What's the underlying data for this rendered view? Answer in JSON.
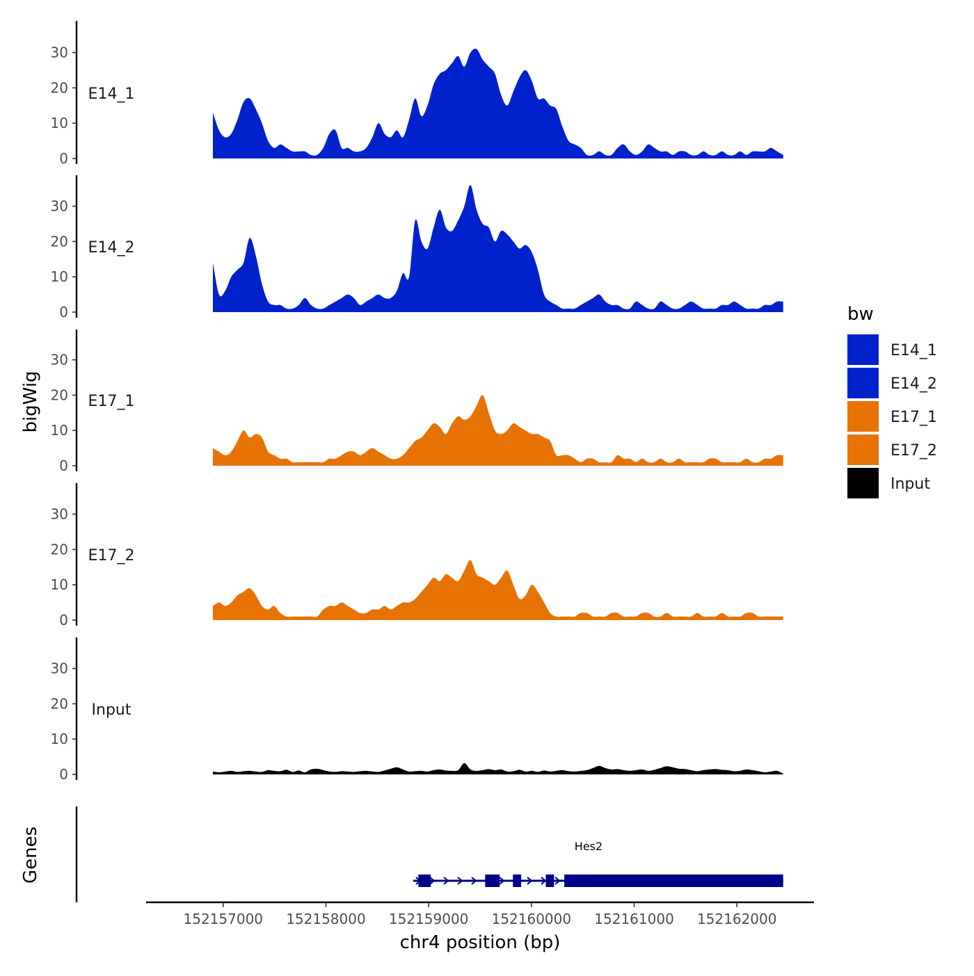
{
  "chart_data": {
    "type": "area",
    "ylabel": "bigWig",
    "xlabel": "chr4 position (bp)",
    "genes_label": "Genes",
    "x_range": [
      152156250,
      152162750
    ],
    "signal_range": [
      152156900,
      152162450
    ],
    "ylim": [
      0,
      38
    ],
    "y_ticks": [
      0,
      10,
      20,
      30
    ],
    "x_ticks": [
      152157000,
      152158000,
      152159000,
      152160000,
      152161000,
      152162000
    ],
    "x_tick_labels": [
      "152157000",
      "152158000",
      "152159000",
      "152160000",
      "152161000",
      "152162000"
    ],
    "legend": {
      "title": "bw",
      "entries": [
        {
          "label": "E14_1",
          "color": "#0022CC"
        },
        {
          "label": "E14_2",
          "color": "#0022CC"
        },
        {
          "label": "E17_1",
          "color": "#E87305"
        },
        {
          "label": "E17_2",
          "color": "#E87305"
        },
        {
          "label": "Input",
          "color": "#000000"
        }
      ]
    },
    "series": [
      {
        "name": "E14_1",
        "color": "#0022CC",
        "values": [
          13,
          8,
          6,
          7,
          11,
          16,
          17,
          14,
          10,
          5,
          3,
          4,
          3,
          2,
          2,
          2,
          1,
          1,
          3,
          7,
          8,
          3,
          3,
          2,
          2,
          3,
          6,
          10,
          7,
          6,
          8,
          6,
          11,
          17,
          12,
          15,
          21,
          24,
          25,
          27,
          29,
          26,
          30,
          31,
          28,
          26,
          24,
          18,
          15,
          19,
          23,
          25,
          22,
          17,
          17,
          15,
          14,
          9,
          5,
          4,
          3,
          1,
          1,
          2,
          1,
          1,
          3,
          4,
          2,
          1,
          2,
          4,
          3,
          2,
          2,
          1,
          2,
          2,
          1,
          1,
          2,
          1,
          1,
          2,
          1,
          1,
          2,
          1,
          2,
          2,
          2,
          3,
          2,
          1
        ]
      },
      {
        "name": "E14_2",
        "color": "#0022CC",
        "values": [
          14,
          5,
          6,
          10,
          12,
          14,
          21,
          16,
          8,
          3,
          2,
          2,
          1,
          1,
          2,
          4,
          2,
          1,
          1,
          2,
          3,
          4,
          5,
          4,
          2,
          3,
          4,
          5,
          4,
          4,
          6,
          11,
          10,
          26,
          20,
          18,
          24,
          29,
          24,
          23,
          26,
          30,
          36,
          29,
          25,
          24,
          20,
          23,
          22,
          20,
          18,
          19,
          17,
          12,
          5,
          3,
          2,
          1,
          1,
          1,
          2,
          3,
          4,
          5,
          3,
          2,
          2,
          1,
          1,
          3,
          2,
          1,
          1,
          3,
          2,
          1,
          1,
          2,
          3,
          2,
          1,
          1,
          1,
          2,
          2,
          3,
          2,
          1,
          1,
          1,
          2,
          2,
          3,
          3
        ]
      },
      {
        "name": "E17_1",
        "color": "#E87305",
        "values": [
          5,
          4,
          3,
          4,
          7,
          10,
          8,
          9,
          8,
          4,
          3,
          2,
          2,
          1,
          1,
          1,
          1,
          1,
          1,
          2,
          2,
          3,
          4,
          4,
          3,
          4,
          5,
          4,
          3,
          2,
          2,
          3,
          5,
          7,
          8,
          10,
          12,
          11,
          9,
          12,
          14,
          13,
          14,
          17,
          20,
          15,
          10,
          9,
          10,
          12,
          11,
          10,
          9,
          9,
          8,
          7,
          3,
          3,
          3,
          2,
          1,
          2,
          2,
          1,
          1,
          1,
          3,
          2,
          2,
          1,
          2,
          1,
          1,
          2,
          1,
          1,
          2,
          1,
          1,
          1,
          1,
          2,
          2,
          1,
          1,
          1,
          1,
          2,
          1,
          1,
          2,
          2,
          3,
          3
        ]
      },
      {
        "name": "E17_2",
        "color": "#E87305",
        "values": [
          4,
          5,
          4,
          5,
          7,
          8,
          9,
          7,
          4,
          3,
          4,
          2,
          1,
          1,
          1,
          1,
          1,
          1,
          3,
          4,
          4,
          5,
          4,
          3,
          2,
          2,
          3,
          3,
          4,
          3,
          4,
          5,
          5,
          6,
          8,
          10,
          12,
          11,
          13,
          12,
          11,
          14,
          17,
          13,
          12,
          11,
          10,
          12,
          14,
          10,
          6,
          7,
          10,
          8,
          5,
          2,
          1,
          1,
          1,
          1,
          2,
          2,
          1,
          1,
          1,
          2,
          2,
          1,
          1,
          1,
          2,
          2,
          1,
          1,
          2,
          1,
          1,
          1,
          1,
          2,
          1,
          1,
          1,
          2,
          1,
          1,
          1,
          2,
          2,
          1,
          1,
          1,
          1,
          1
        ]
      },
      {
        "name": "Input",
        "color": "#000000",
        "values": [
          0.8,
          0.6,
          0.8,
          1,
          0.7,
          0.9,
          1,
          0.8,
          0.7,
          1.2,
          1,
          0.9,
          1.3,
          0.7,
          1.1,
          0.6,
          1.4,
          1.6,
          1.2,
          0.8,
          0.7,
          0.9,
          0.8,
          0.7,
          0.9,
          1,
          0.8,
          0.7,
          1.1,
          1.6,
          2,
          1.4,
          0.8,
          0.9,
          1,
          0.8,
          1.2,
          1.4,
          1.1,
          1,
          1.2,
          3.2,
          1.4,
          1,
          1.2,
          1.5,
          1.2,
          1.4,
          0.8,
          0.9,
          1.3,
          0.8,
          1,
          0.7,
          1.1,
          0.8,
          1,
          1.2,
          0.9,
          0.8,
          1,
          1.2,
          1.8,
          2.4,
          1.8,
          1.4,
          1.5,
          1.2,
          1,
          1.2,
          1.4,
          1,
          1.3,
          1.8,
          2.3,
          2,
          1.6,
          1.5,
          1.2,
          0.9,
          1.2,
          1.4,
          1.5,
          1.3,
          1.2,
          0.9,
          1,
          1.4,
          1.2,
          0.9,
          0.6,
          0.8,
          1,
          0.2
        ]
      }
    ],
    "gene": {
      "name": "Hes2",
      "strand": "+",
      "start": 152158850,
      "end": 152162450,
      "exons": [
        [
          152158900,
          152159020
        ],
        [
          152159550,
          152159690
        ],
        [
          152159820,
          152159900
        ],
        [
          152160140,
          152160220
        ],
        [
          152160320,
          152162450
        ]
      ]
    }
  }
}
